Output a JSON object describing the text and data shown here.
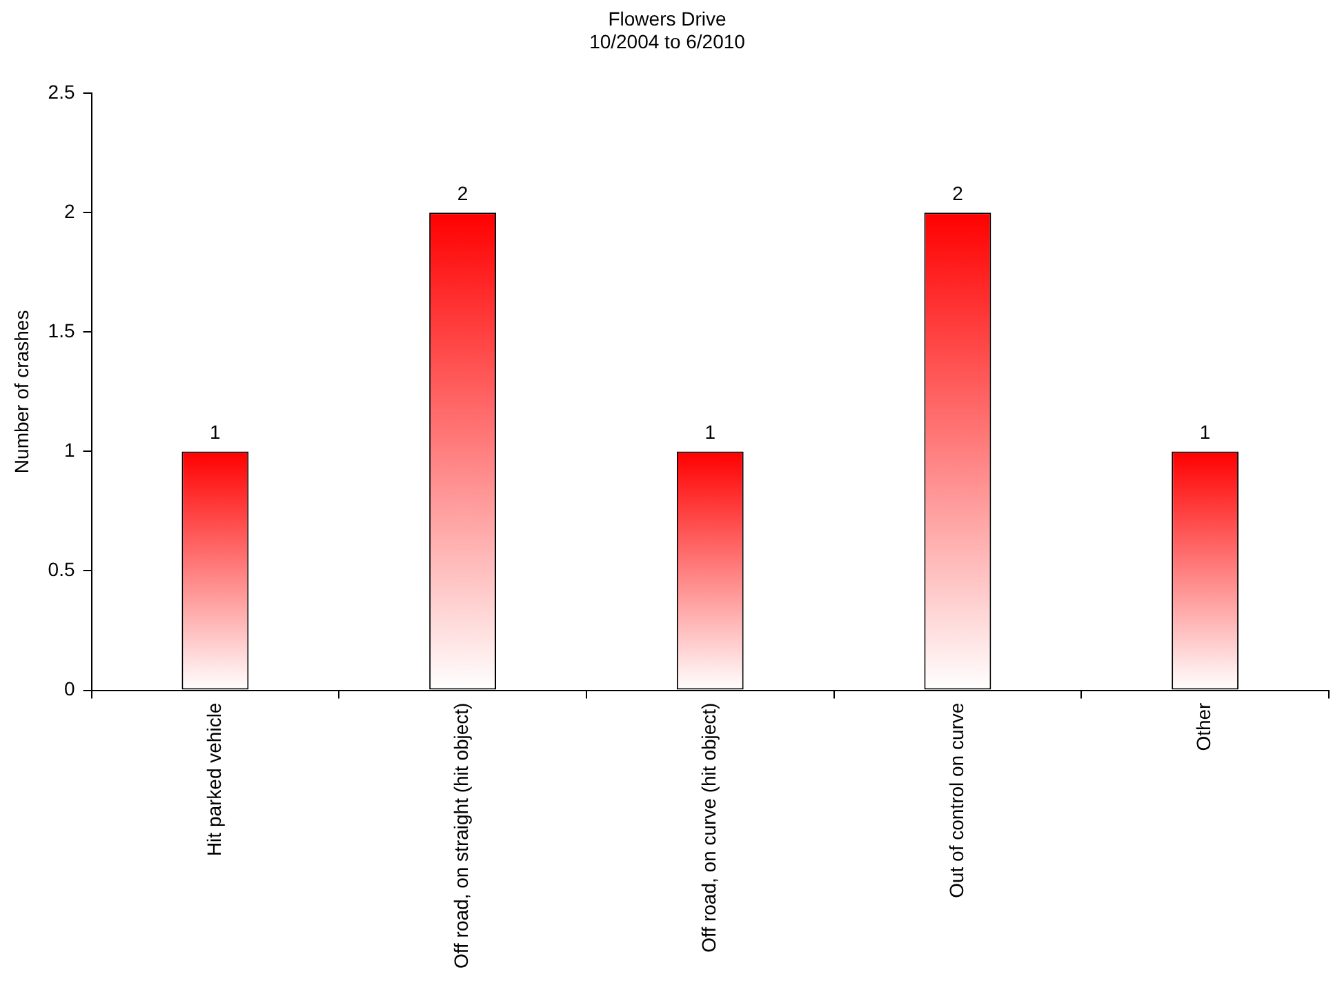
{
  "chart_data": {
    "type": "bar",
    "title": "Flowers Drive",
    "subtitle": "10/2004 to 6/2010",
    "ylabel": "Number of crashes",
    "categories": [
      "Hit parked vehicle",
      "Off road, on straight (hit object)",
      "Off road, on curve (hit object)",
      "Out of control on curve",
      "Other"
    ],
    "values": [
      1,
      2,
      1,
      2,
      1
    ],
    "color": "#ff0000",
    "ylim": [
      0,
      2.5
    ],
    "yticks": [
      0,
      0.5,
      1,
      1.5,
      2,
      2.5
    ],
    "grid": false,
    "legend": false,
    "data_labels": true
  }
}
